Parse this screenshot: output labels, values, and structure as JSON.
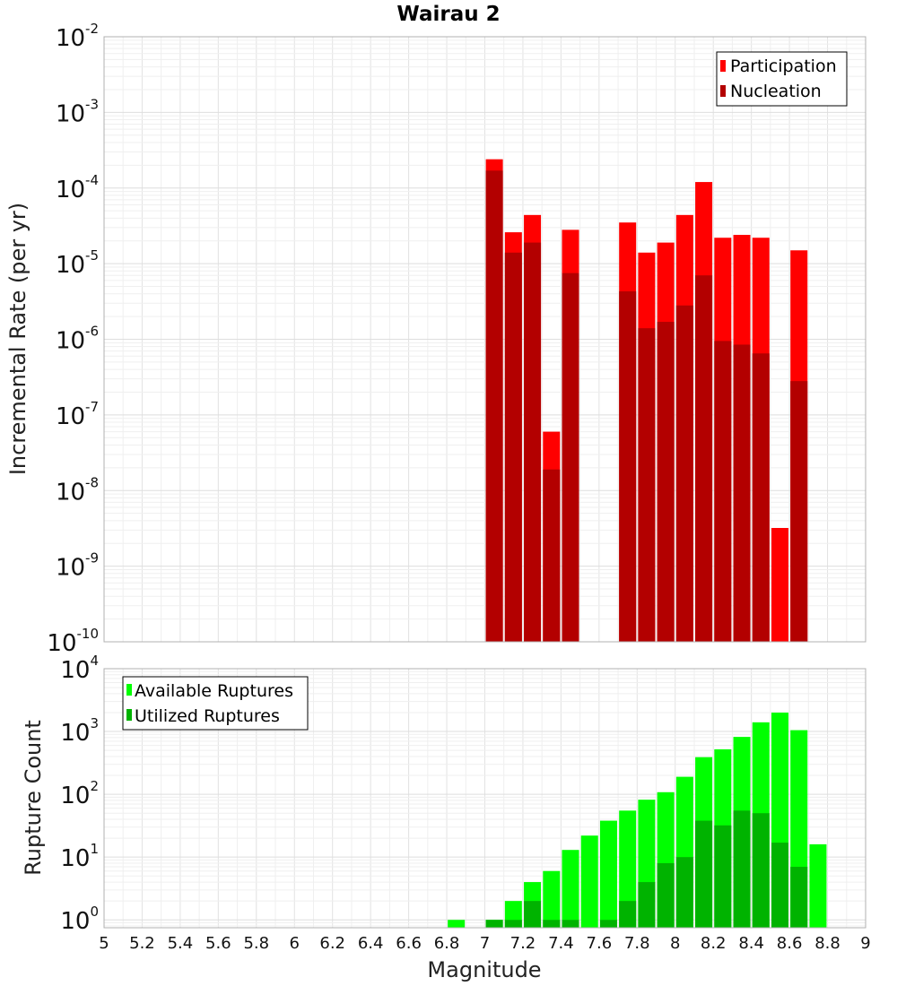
{
  "chart_data": [
    {
      "type": "bar",
      "title": "Wairau 2",
      "xlabel": "",
      "ylabel": "Incremental Rate (per yr)",
      "yscale": "log",
      "ylim": [
        1e-10,
        0.01
      ],
      "xlim": [
        5,
        9
      ],
      "grid": true,
      "legend_placement": "top-right",
      "x": [
        7.0,
        7.1,
        7.2,
        7.3,
        7.4,
        7.7,
        7.8,
        7.9,
        8.0,
        8.1,
        8.2,
        8.3,
        8.4,
        8.5,
        8.6
      ],
      "series": [
        {
          "name": "Participation",
          "color": "#ff0000",
          "values": [
            0.00024,
            2.6e-05,
            4.4e-05,
            6e-08,
            2.8e-05,
            3.5e-05,
            1.4e-05,
            1.9e-05,
            4.4e-05,
            0.00012,
            2.2e-05,
            2.4e-05,
            2.2e-05,
            3.2e-09,
            1.5e-05
          ]
        },
        {
          "name": "Nucleation",
          "color": "#b30000",
          "values": [
            0.00017,
            1.4e-05,
            1.9e-05,
            1.9e-08,
            7.5e-06,
            4.3e-06,
            1.4e-06,
            1.7e-06,
            2.8e-06,
            7e-06,
            9.5e-07,
            8.5e-07,
            6.5e-07,
            1e-10,
            2.8e-07
          ]
        }
      ]
    },
    {
      "type": "bar",
      "title": "",
      "xlabel": "Magnitude",
      "ylabel": "Rupture Count",
      "yscale": "log",
      "ylim": [
        0.75,
        10000.0
      ],
      "xlim": [
        5,
        9
      ],
      "grid": true,
      "legend_placement": "top-left",
      "x": [
        6.8,
        7.0,
        7.1,
        7.2,
        7.3,
        7.4,
        7.5,
        7.6,
        7.7,
        7.8,
        7.9,
        8.0,
        8.1,
        8.2,
        8.3,
        8.4,
        8.5,
        8.6,
        8.7
      ],
      "series": [
        {
          "name": "Available Ruptures",
          "color": "#00ff00",
          "values": [
            1,
            1,
            2,
            4,
            6,
            13,
            22,
            38,
            55,
            82,
            108,
            190,
            390,
            520,
            820,
            1400,
            2000,
            1050,
            16
          ]
        },
        {
          "name": "Utilized Ruptures",
          "color": "#00b300",
          "values": [
            0,
            1,
            1,
            2,
            1,
            1,
            0,
            1,
            2,
            4,
            8,
            10,
            38,
            32,
            55,
            50,
            17,
            7,
            0
          ]
        }
      ]
    }
  ],
  "xticks": [
    "5",
    "5.2",
    "5.4",
    "5.6",
    "5.8",
    "6",
    "6.2",
    "6.4",
    "6.6",
    "6.8",
    "7",
    "7.2",
    "7.4",
    "7.6",
    "7.8",
    "8",
    "8.2",
    "8.4",
    "8.6",
    "8.8",
    "9"
  ],
  "top_yticks": [
    {
      "base": "10",
      "exp": "-10"
    },
    {
      "base": "10",
      "exp": "-9"
    },
    {
      "base": "10",
      "exp": "-8"
    },
    {
      "base": "10",
      "exp": "-7"
    },
    {
      "base": "10",
      "exp": "-6"
    },
    {
      "base": "10",
      "exp": "-5"
    },
    {
      "base": "10",
      "exp": "-4"
    },
    {
      "base": "10",
      "exp": "-3"
    },
    {
      "base": "10",
      "exp": "-2"
    }
  ],
  "bottom_yticks": [
    {
      "base": "10",
      "exp": "0"
    },
    {
      "base": "10",
      "exp": "1"
    },
    {
      "base": "10",
      "exp": "2"
    },
    {
      "base": "10",
      "exp": "3"
    },
    {
      "base": "10",
      "exp": "4"
    }
  ]
}
